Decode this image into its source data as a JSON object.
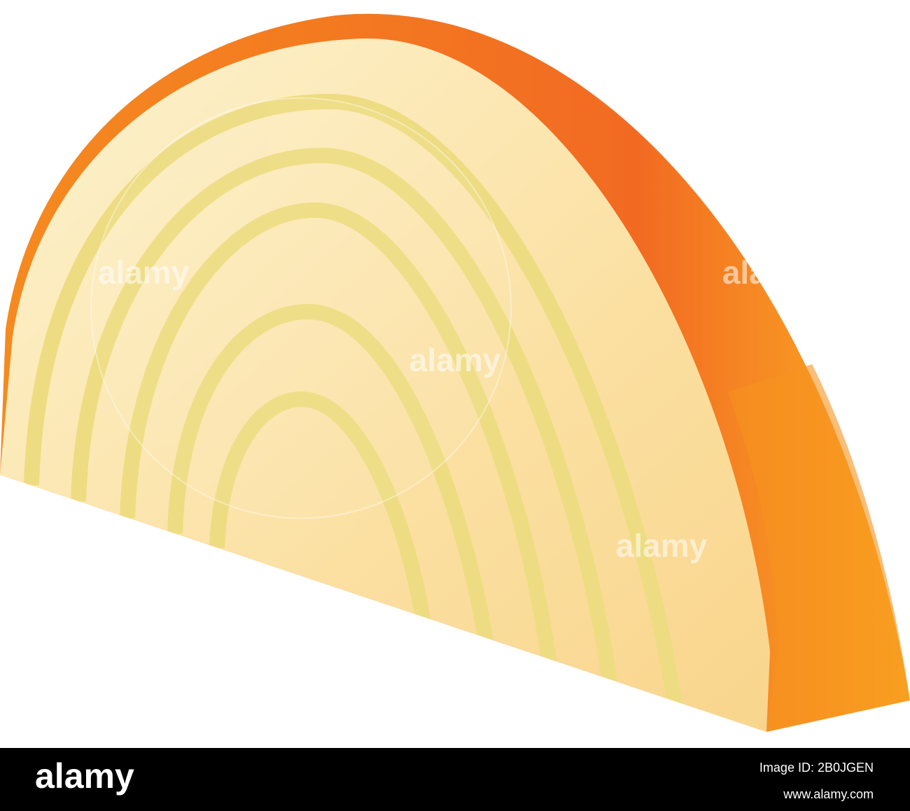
{
  "watermark": "alamy",
  "footer": {
    "brand": "alamy",
    "image_id": "Image ID: 2B0JGEN",
    "url": "www.alamy.com"
  }
}
